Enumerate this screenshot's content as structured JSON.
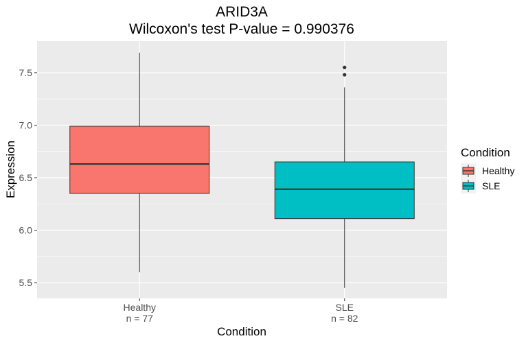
{
  "chart_data": {
    "type": "boxplot",
    "title": "ARID3A",
    "subtitle": "Wilcoxon's test P-value = 0.990376",
    "xlabel": "Condition",
    "ylabel": "Expression",
    "ylim": [
      5.35,
      7.8
    ],
    "yticks": [
      5.5,
      6.0,
      6.5,
      7.0,
      7.5
    ],
    "ytick_labels": [
      "5.5",
      "6.0",
      "6.5",
      "7.0",
      "7.5"
    ],
    "grid": true,
    "legend": {
      "title": "Condition",
      "position": "right",
      "entries": [
        "Healthy",
        "SLE"
      ]
    },
    "categories": [
      {
        "name": "Healthy",
        "count_label": "n = 77",
        "color": "#F8766D",
        "whisker_low": 5.6,
        "q1": 6.35,
        "median": 6.63,
        "q3": 6.99,
        "whisker_high": 7.69,
        "outliers": []
      },
      {
        "name": "SLE",
        "count_label": "n = 82",
        "color": "#00BFC4",
        "whisker_low": 5.45,
        "q1": 6.11,
        "median": 6.39,
        "q3": 6.65,
        "whisker_high": 7.36,
        "outliers": [
          7.48,
          7.55
        ]
      }
    ]
  }
}
